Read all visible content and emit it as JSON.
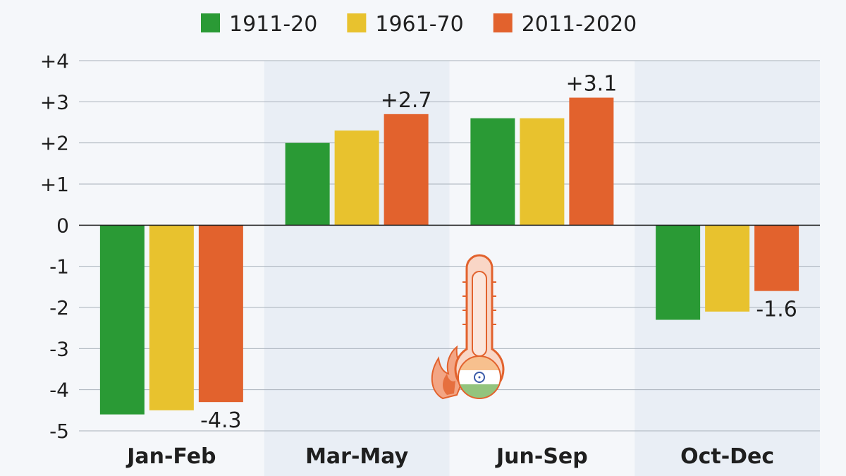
{
  "chart_data": {
    "type": "bar",
    "title": "",
    "xlabel": "",
    "ylabel": "",
    "ylim": [
      -5,
      4
    ],
    "yticks": [
      4,
      3,
      2,
      1,
      0,
      -1,
      -2,
      -3,
      -4,
      -5
    ],
    "ytick_labels": [
      "+4",
      "+3",
      "+2",
      "+1",
      "0",
      "-1",
      "-2",
      "-3",
      "-4",
      "-5"
    ],
    "grid": true,
    "legend_position": "top-center",
    "categories": [
      "Jan-Feb",
      "Mar-May",
      "Jun-Sep",
      "Oct-Dec"
    ],
    "series": [
      {
        "name": "1911-20",
        "color": "#2a9a35",
        "values": [
          -4.6,
          2.0,
          2.6,
          -2.3
        ]
      },
      {
        "name": "1961-70",
        "color": "#e8c22e",
        "values": [
          -4.5,
          2.3,
          2.6,
          -2.1
        ]
      },
      {
        "name": "2011-2020",
        "color": "#e2622d",
        "values": [
          -4.3,
          2.7,
          3.1,
          -1.6
        ]
      }
    ],
    "annotations": [
      {
        "series": 2,
        "category": 0,
        "text": "-4.3"
      },
      {
        "series": 2,
        "category": 1,
        "text": "+2.7"
      },
      {
        "series": 2,
        "category": 2,
        "text": "+3.1"
      },
      {
        "series": 2,
        "category": 3,
        "text": "-1.6"
      }
    ]
  },
  "colors": {
    "background": "#f5f7fa",
    "band": "#e9eef5",
    "grid": "#a9b1ba",
    "zero_line": "#222222",
    "text": "#1f1f1f"
  },
  "icons": {
    "illustration": "thermometer-india-flag-icon"
  }
}
